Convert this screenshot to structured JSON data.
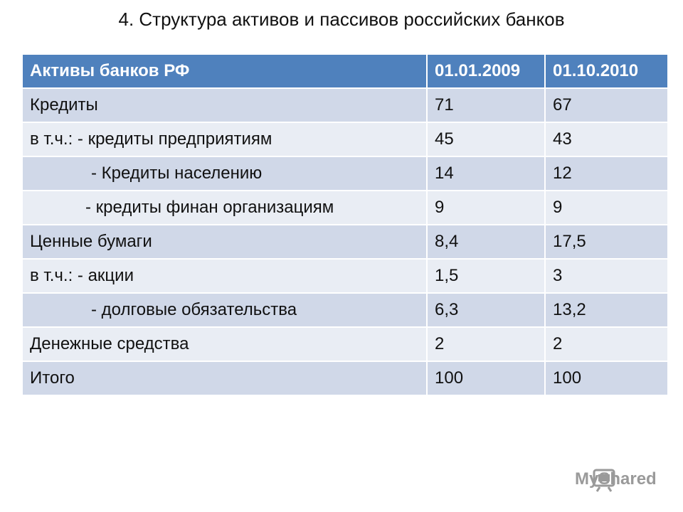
{
  "title": "4. Структура активов и пассивов российских банков",
  "table": {
    "header": [
      "Активы банков РФ",
      "01.01.2009",
      "01.10.2010"
    ],
    "rows": [
      [
        "Кредиты",
        "71",
        "67"
      ],
      [
        "в т.ч.: - кредиты предприятиям",
        "45",
        "43"
      ],
      [
        "- Кредиты населению",
        "14",
        "12"
      ],
      [
        "- кредиты финан организациям",
        "9",
        "9"
      ],
      [
        "Ценные бумаги",
        "8,4",
        "17,5"
      ],
      [
        "в т.ч.:  - акции",
        "1,5",
        "3"
      ],
      [
        "- долговые обязательства",
        "6,3",
        "13,2"
      ],
      [
        "Денежные средства",
        "2",
        "2"
      ],
      [
        "Итого",
        "100",
        "100"
      ]
    ]
  },
  "watermark": "MyShared"
}
